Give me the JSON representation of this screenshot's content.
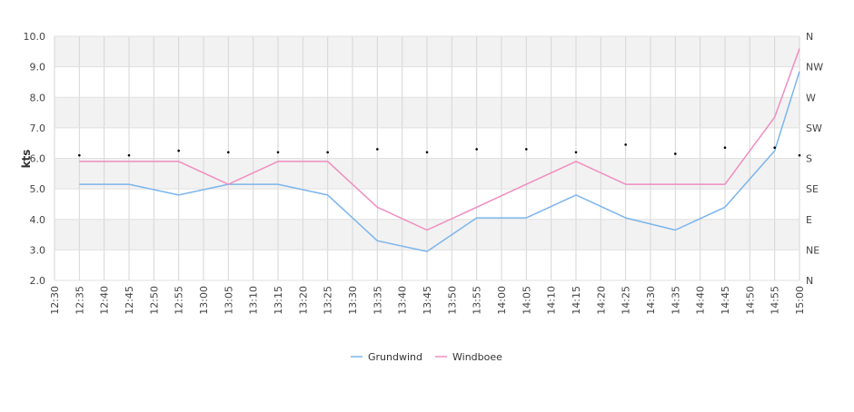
{
  "chart_data": {
    "type": "line",
    "ylabel": "kts",
    "ylim": [
      2.0,
      10.0
    ],
    "y_ticks": [
      "2.0",
      "3.0",
      "4.0",
      "5.0",
      "6.0",
      "7.0",
      "8.0",
      "9.0",
      "10.0"
    ],
    "y2_ticks": [
      "N",
      "NE",
      "E",
      "SE",
      "S",
      "SW",
      "W",
      "NW",
      "N"
    ],
    "x_ticks": [
      "12:30",
      "12:35",
      "12:40",
      "12:45",
      "12:50",
      "12:55",
      "13:00",
      "13:05",
      "13:10",
      "13:15",
      "13:20",
      "13:25",
      "13:30",
      "13:35",
      "13:40",
      "13:45",
      "13:50",
      "13:55",
      "14:00",
      "14:05",
      "14:10",
      "14:15",
      "14:20",
      "14:25",
      "14:30",
      "14:35",
      "14:40",
      "14:45",
      "14:50",
      "14:55",
      "15:00"
    ],
    "x": [
      "12:35",
      "12:45",
      "12:55",
      "13:05",
      "13:15",
      "13:25",
      "13:35",
      "13:45",
      "13:55",
      "14:05",
      "14:15",
      "14:25",
      "14:35",
      "14:45",
      "14:55",
      "15:00"
    ],
    "series": [
      {
        "name": "Grundwind",
        "color": "#7cb5ec",
        "values": [
          5.15,
          5.15,
          4.8,
          5.15,
          5.15,
          4.8,
          3.3,
          2.95,
          4.05,
          4.05,
          4.8,
          4.05,
          3.65,
          4.4,
          6.25,
          8.85
        ]
      },
      {
        "name": "Windboee",
        "color": "#f08dc0",
        "values": [
          5.9,
          5.9,
          5.9,
          5.15,
          5.9,
          5.9,
          4.4,
          3.65,
          4.4,
          5.15,
          5.9,
          5.15,
          5.15,
          5.15,
          7.35,
          9.6
        ]
      }
    ],
    "direction_markers": {
      "x": [
        "12:35",
        "12:45",
        "12:55",
        "13:05",
        "13:15",
        "13:25",
        "13:35",
        "13:45",
        "13:55",
        "14:05",
        "14:15",
        "14:25",
        "14:35",
        "14:45",
        "14:55",
        "15:00"
      ],
      "values": [
        6.1,
        6.1,
        6.25,
        6.2,
        6.2,
        6.2,
        6.3,
        6.2,
        6.3,
        6.3,
        6.2,
        6.45,
        6.15,
        6.35,
        6.35,
        6.1
      ]
    },
    "grid": true,
    "alternating_bands": true,
    "legend_position": "bottom-center"
  }
}
